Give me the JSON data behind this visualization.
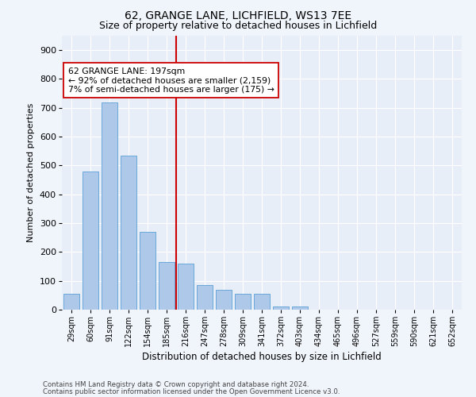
{
  "title1": "62, GRANGE LANE, LICHFIELD, WS13 7EE",
  "title2": "Size of property relative to detached houses in Lichfield",
  "xlabel": "Distribution of detached houses by size in Lichfield",
  "ylabel": "Number of detached properties",
  "categories": [
    "29sqm",
    "60sqm",
    "91sqm",
    "122sqm",
    "154sqm",
    "185sqm",
    "216sqm",
    "247sqm",
    "278sqm",
    "309sqm",
    "341sqm",
    "372sqm",
    "403sqm",
    "434sqm",
    "465sqm",
    "496sqm",
    "527sqm",
    "559sqm",
    "590sqm",
    "621sqm",
    "652sqm"
  ],
  "values": [
    55,
    480,
    720,
    535,
    270,
    165,
    160,
    85,
    70,
    55,
    55,
    10,
    10,
    0,
    0,
    0,
    0,
    0,
    0,
    0,
    0
  ],
  "bar_color": "#adc8e8",
  "bar_edge_color": "#5a9fd4",
  "vline_position": 6,
  "vline_color": "#cc0000",
  "annotation_text": "62 GRANGE LANE: 197sqm\n← 92% of detached houses are smaller (2,159)\n7% of semi-detached houses are larger (175) →",
  "annotation_box_color": "#ffffff",
  "annotation_box_edge": "#cc0000",
  "footer1": "Contains HM Land Registry data © Crown copyright and database right 2024.",
  "footer2": "Contains public sector information licensed under the Open Government Licence v3.0.",
  "ylim": [
    0,
    950
  ],
  "yticks": [
    0,
    100,
    200,
    300,
    400,
    500,
    600,
    700,
    800,
    900
  ],
  "background_color": "#f0f4fb",
  "plot_bg_color": "#e8eef8",
  "title1_fontsize": 10,
  "title2_fontsize": 9,
  "ylabel_fontsize": 8,
  "xlabel_fontsize": 8.5
}
